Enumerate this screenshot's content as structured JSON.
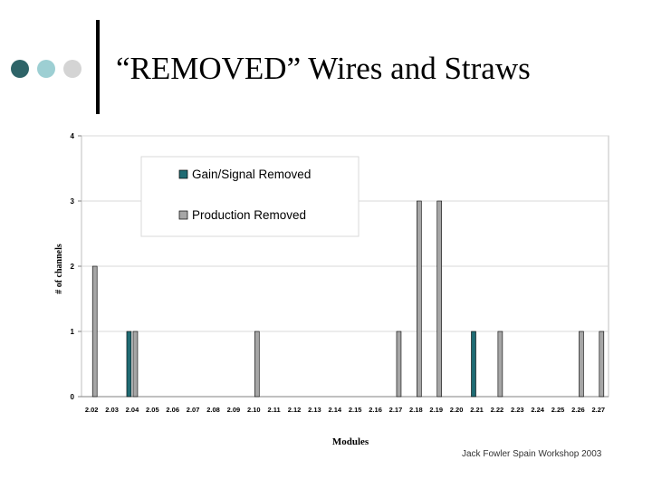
{
  "slide": {
    "title": "“REMOVED” Wires and Straws",
    "footer": "Jack Fowler Spain Workshop 2003",
    "bullet_colors": [
      "#2e6468",
      "#9dcfd3",
      "#d4d4d4"
    ]
  },
  "chart_data": {
    "type": "bar",
    "title": "",
    "xlabel": "Modules",
    "ylabel": "# of channels",
    "ylim": [
      0,
      4
    ],
    "yticks": [
      "0",
      "1",
      "2",
      "3",
      "4"
    ],
    "grid": true,
    "legend_position": "top-left",
    "categories": [
      "2.02",
      "2.03",
      "2.04",
      "2.05",
      "2.06",
      "2.07",
      "2.08",
      "2.09",
      "2.10",
      "2.11",
      "2.12",
      "2.13",
      "2.14",
      "2.15",
      "2.16",
      "2.17",
      "2.18",
      "2.19",
      "2.20",
      "2.21",
      "2.22",
      "2.23",
      "2.24",
      "2.25",
      "2.26",
      "2.27"
    ],
    "series": [
      {
        "name": "Gain/Signal Removed",
        "color": "#1f6b73",
        "values": [
          0,
          0,
          1,
          0,
          0,
          0,
          0,
          0,
          0,
          0,
          0,
          0,
          0,
          0,
          0,
          0,
          0,
          0,
          0,
          1,
          0,
          0,
          0,
          0,
          0,
          0
        ]
      },
      {
        "name": "Production Removed",
        "color": "#a6a6a6",
        "values": [
          2,
          0,
          1,
          0,
          0,
          0,
          0,
          0,
          1,
          0,
          0,
          0,
          0,
          0,
          0,
          1,
          3,
          3,
          0,
          0,
          1,
          0,
          0,
          0,
          1,
          1
        ]
      }
    ]
  }
}
